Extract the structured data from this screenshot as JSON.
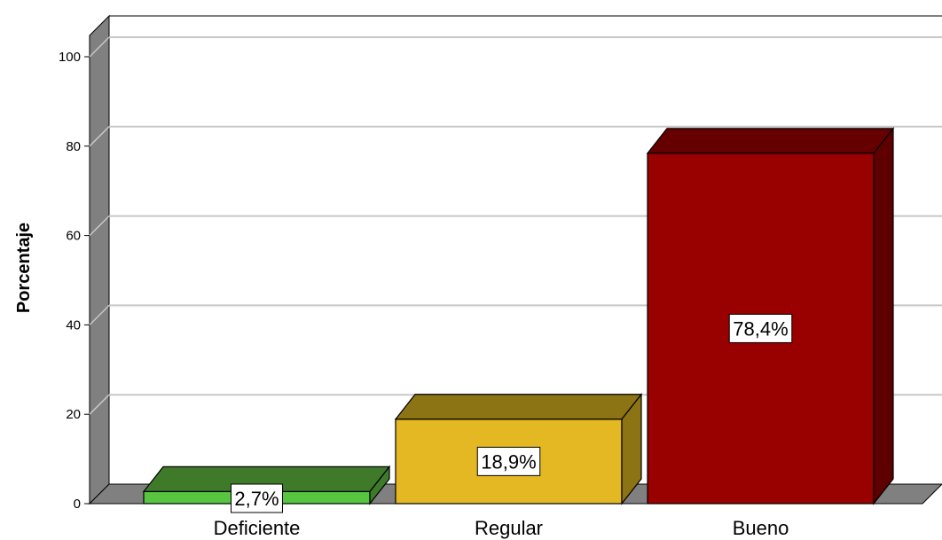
{
  "chart_data": {
    "type": "bar",
    "categories": [
      "Deficiente",
      "Regular",
      "Bueno"
    ],
    "values": [
      2.7,
      18.9,
      78.4
    ],
    "data_labels": [
      "2,7%",
      "18,9%",
      "78,4%"
    ],
    "ylabel": "Porcentaje",
    "xlabel": "",
    "ylim": [
      0,
      100
    ],
    "yticks": [
      0,
      20,
      40,
      60,
      80,
      100
    ],
    "grid": true,
    "three_d": true,
    "colors": {
      "bars": [
        "#57c540",
        "#e3b823",
        "#990000"
      ],
      "bar_tops": [
        "#3e7a2a",
        "#8c7314",
        "#660000"
      ],
      "bar_sides": [
        "#3e7a2a",
        "#8c7314",
        "#5e0000"
      ],
      "wall": "#808080",
      "gridline": "#c8c8c8"
    }
  }
}
